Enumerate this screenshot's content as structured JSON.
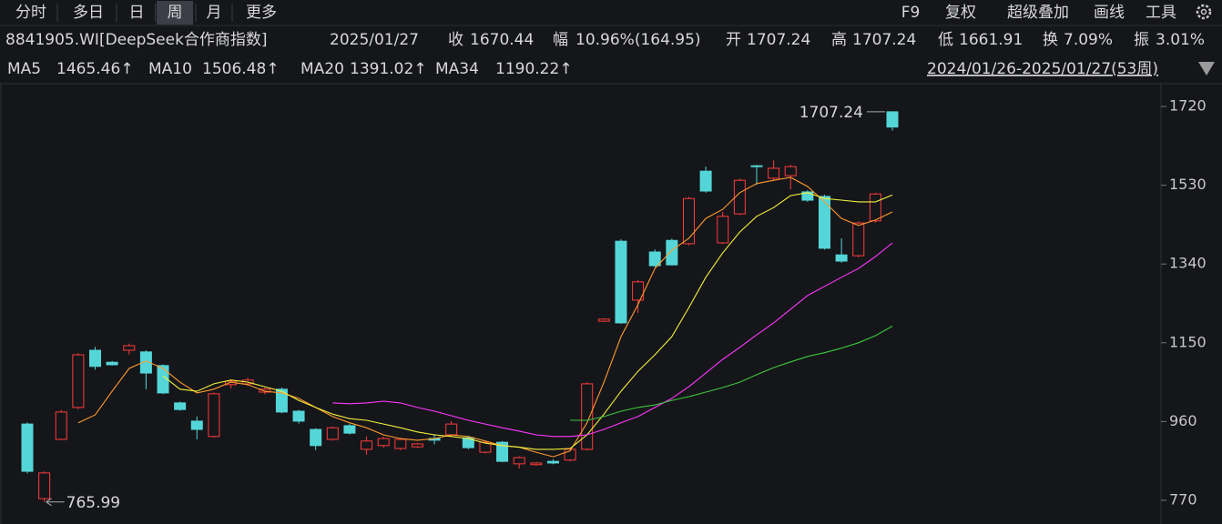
{
  "header": {
    "tabs": [
      "分时",
      "多日",
      "日",
      "周",
      "月",
      "更多"
    ],
    "active_tab": 3,
    "tools": [
      "F9",
      "复权",
      "超级叠加",
      "画线",
      "工具"
    ]
  },
  "quote": {
    "code": "8841905.WI[DeepSeek合作商指数]",
    "date": "2025/01/27",
    "close_label": "收",
    "change_label": "幅",
    "change": "10.96%(164.95)",
    "open_label": "开",
    "high_label": "高",
    "low_label": "低",
    "turnover_label": "换",
    "turnover": "7.09%",
    "amplitude_label": "振",
    "amplitude": "3.01%"
  },
  "range": "2024/01/26-2025/01/27(53周)",
  "trend_mark": "↑",
  "chart_data": {
    "type": "candlestick",
    "up_color": "#ff3b3b",
    "down_color": "#54d6d8",
    "ylim": [
      726,
      1775
    ],
    "yticks": [
      770,
      960,
      1150,
      1340,
      1530,
      1720
    ],
    "grid": false,
    "candles": {
      "open": [
        954,
        774,
        917,
        994,
        1132,
        1103,
        1132,
        1128,
        1095,
        1005,
        961,
        924,
        1049,
        1051,
        1031,
        1038,
        985,
        941,
        917,
        950,
        893,
        902,
        895,
        899,
        919,
        928,
        921,
        886,
        910,
        858,
        856,
        864,
        867,
        893,
        1202,
        1395,
        1253,
        1369,
        1397,
        1389,
        1564,
        1391,
        1461,
        1577,
        1547,
        1553,
        1514,
        1503,
        1362,
        1360,
        1444,
        1707.24
      ],
      "high": [
        958,
        840,
        988,
        1125,
        1140,
        1106,
        1148,
        1132,
        1098,
        1008,
        972,
        1030,
        1062,
        1066,
        1042,
        1042,
        988,
        944,
        948,
        955,
        924,
        924,
        920,
        909,
        930,
        961,
        926,
        913,
        913,
        876,
        862,
        869,
        897,
        1055,
        1209,
        1400,
        1301,
        1375,
        1401,
        1502,
        1575,
        1466,
        1546,
        1579,
        1590,
        1579,
        1518,
        1507,
        1402,
        1443,
        1512,
        1707.24
      ],
      "low": [
        835,
        765.99,
        915,
        990,
        1085,
        1095,
        1122,
        1038,
        1026,
        986,
        917,
        921,
        1040,
        1046,
        1026,
        980,
        955,
        891,
        914,
        929,
        880,
        897,
        891,
        896,
        905,
        924,
        893,
        883,
        862,
        847,
        853,
        857,
        864,
        890,
        1200,
        1196,
        1222,
        1332,
        1336,
        1385,
        1512,
        1388,
        1458,
        1531,
        1543,
        1520,
        1490,
        1375,
        1343,
        1356,
        1440,
        1661.91
      ],
      "close": [
        840,
        836,
        983,
        1121,
        1093,
        1097,
        1143,
        1077,
        1029,
        989,
        941,
        1027,
        1057,
        1060,
        1038,
        983,
        961,
        902,
        945,
        932,
        913,
        919,
        917,
        906,
        915,
        954,
        897,
        910,
        864,
        873,
        860,
        860,
        893,
        1051,
        1207,
        1198,
        1297,
        1336,
        1338,
        1498,
        1516,
        1455,
        1542,
        1575,
        1571,
        1575,
        1494,
        1378,
        1347,
        1439,
        1509,
        1670.44
      ]
    },
    "series": [
      {
        "name": "MA5",
        "color": "#ff9a2e",
        "values": [
          null,
          null,
          null,
          957,
          976,
          1033,
          1088,
          1106,
          1088,
          1055,
          1029,
          1038,
          1055,
          1049,
          1033,
          1029,
          1016,
          994,
          972,
          957,
          945,
          928,
          919,
          915,
          919,
          928,
          924,
          913,
          902,
          898,
          886,
          875,
          889,
          957,
          1055,
          1165,
          1242,
          1329,
          1373,
          1402,
          1450,
          1472,
          1512,
          1534,
          1542,
          1549,
          1527,
          1490,
          1450,
          1433,
          1446,
          1465.46
        ]
      },
      {
        "name": "MA10",
        "color": "#f2f23c",
        "values": [
          null,
          null,
          null,
          null,
          null,
          null,
          null,
          null,
          1070,
          1038,
          1033,
          1051,
          1060,
          1055,
          1044,
          1033,
          1011,
          994,
          978,
          967,
          963,
          954,
          945,
          935,
          928,
          924,
          919,
          908,
          902,
          898,
          893,
          893,
          895,
          928,
          978,
          1033,
          1081,
          1121,
          1165,
          1235,
          1308,
          1367,
          1417,
          1455,
          1476,
          1505,
          1512,
          1498,
          1494,
          1490,
          1490,
          1506.48
        ]
      },
      {
        "name": "MA20",
        "color": "#ff38ff",
        "values": [
          null,
          null,
          null,
          null,
          null,
          null,
          null,
          null,
          null,
          null,
          null,
          null,
          null,
          null,
          null,
          null,
          null,
          null,
          1005,
          1003,
          1005,
          1009,
          1005,
          994,
          985,
          974,
          963,
          954,
          945,
          937,
          928,
          924,
          924,
          928,
          941,
          957,
          972,
          994,
          1016,
          1044,
          1077,
          1110,
          1139,
          1169,
          1198,
          1231,
          1264,
          1286,
          1308,
          1329,
          1358,
          1391.02
        ]
      },
      {
        "name": "MA34",
        "color": "#3cc83c",
        "values": [
          null,
          null,
          null,
          null,
          null,
          null,
          null,
          null,
          null,
          null,
          null,
          null,
          null,
          null,
          null,
          null,
          null,
          null,
          null,
          null,
          null,
          null,
          null,
          null,
          null,
          null,
          null,
          null,
          null,
          null,
          null,
          null,
          963,
          963,
          972,
          985,
          994,
          1000,
          1011,
          1020,
          1031,
          1042,
          1055,
          1073,
          1090,
          1104,
          1117,
          1126,
          1137,
          1150,
          1167,
          1190.22
        ]
      }
    ]
  }
}
